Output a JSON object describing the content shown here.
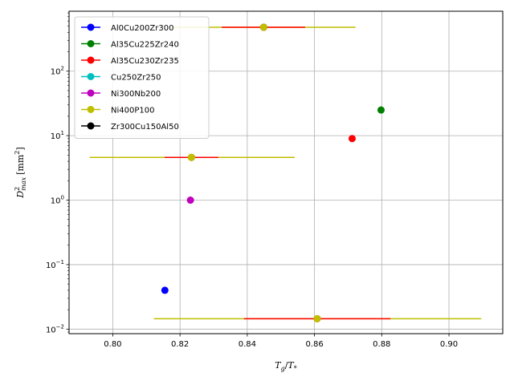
{
  "chart_data": {
    "type": "scatter",
    "title": "",
    "xlabel": {
      "base": "T",
      "sub1": "g",
      "slash": "/",
      "base2": "T",
      "sub2": "*"
    },
    "ylabel": {
      "base": "D",
      "sup": "2",
      "sub": "max",
      "unit": "[mm",
      "unit_sup": "2",
      "unit_close": "]"
    },
    "x_scale": "linear",
    "y_scale": "log",
    "xlim": [
      0.787,
      0.916
    ],
    "ylim": [
      0.0085,
      850
    ],
    "grid": true,
    "legend_position": "upper-left",
    "x_ticks": [
      {
        "value": 0.8,
        "label": "0.80"
      },
      {
        "value": 0.82,
        "label": "0.82"
      },
      {
        "value": 0.84,
        "label": "0.84"
      },
      {
        "value": 0.86,
        "label": "0.86"
      },
      {
        "value": 0.88,
        "label": "0.88"
      },
      {
        "value": 0.9,
        "label": "0.90"
      }
    ],
    "y_ticks": [
      {
        "value": 0.01,
        "base": "10",
        "exp": "−2"
      },
      {
        "value": 0.1,
        "base": "10",
        "exp": "−1"
      },
      {
        "value": 1,
        "base": "10",
        "exp": "0"
      },
      {
        "value": 10,
        "base": "10",
        "exp": "1"
      },
      {
        "value": 100,
        "base": "10",
        "exp": "2"
      }
    ],
    "series": [
      {
        "name": "Al0Cu200Zr300",
        "color": "#0000ff",
        "points": [
          {
            "x": 0.8155,
            "y": 0.04
          }
        ]
      },
      {
        "name": "Al35Cu225Zr240",
        "color": "#008000",
        "points": [
          {
            "x": 0.8798,
            "y": 25
          }
        ]
      },
      {
        "name": "Al35Cu230Zr235",
        "color": "#ff0000",
        "points": [
          {
            "x": 0.8712,
            "y": 9
          },
          {
            "x": 0.8234,
            "y": 4.6,
            "xerr": [
              0.8154,
              0.8314
            ]
          },
          {
            "x": 0.8608,
            "y": 0.0145,
            "xerr": [
              0.839,
              0.8826
            ]
          },
          {
            "x": 0.8449,
            "y": 480,
            "xerr": [
              0.8324,
              0.8572
            ]
          }
        ]
      },
      {
        "name": "Cu250Zr250",
        "color": "#00bfbf",
        "points": [
          {
            "x": 0.8234,
            "y": 4.6
          }
        ]
      },
      {
        "name": "Ni300Nb200",
        "color": "#bf00bf",
        "points": [
          {
            "x": 0.8231,
            "y": 1.0
          }
        ]
      },
      {
        "name": "Ni400P100",
        "color": "#bfbf00",
        "points": [
          {
            "x": 0.8608,
            "y": 0.0145,
            "xerr": [
              0.8122,
              0.9096
            ]
          },
          {
            "x": 0.8234,
            "y": 4.6,
            "xerr": [
              0.7931,
              0.8541
            ]
          },
          {
            "x": 0.8449,
            "y": 480,
            "xerr": [
              0.8177,
              0.8722
            ]
          }
        ]
      },
      {
        "name": "Zr300Cu150Al50",
        "color": "#000000",
        "points": [
          {
            "x": 0.8449,
            "y": 480
          }
        ]
      }
    ]
  }
}
